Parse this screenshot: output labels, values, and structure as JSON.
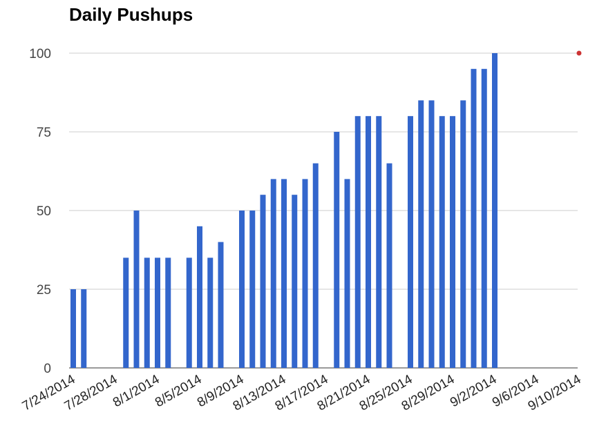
{
  "chart_data": {
    "type": "bar",
    "title": "Daily Pushups",
    "xlabel": "",
    "ylabel": "",
    "ylim": [
      0,
      100
    ],
    "xlim": [
      "7/24/2014",
      "9/10/2014"
    ],
    "grid": true,
    "legend": "none",
    "series_color": "#3366cc",
    "marker_color": "#cc3333",
    "y_ticks": [
      0,
      25,
      50,
      75,
      100
    ],
    "x_tick_labels": [
      "7/24/2014",
      "7/28/2014",
      "8/1/2014",
      "8/5/2014",
      "8/9/2014",
      "8/13/2014",
      "8/17/2014",
      "8/21/2014",
      "8/25/2014",
      "8/29/2014",
      "9/2/2014",
      "9/6/2014",
      "9/10/2014"
    ],
    "bars": [
      {
        "date": "7/24/2014",
        "value": 25
      },
      {
        "date": "7/25/2014",
        "value": 25
      },
      {
        "date": "7/29/2014",
        "value": 35
      },
      {
        "date": "7/30/2014",
        "value": 50
      },
      {
        "date": "7/31/2014",
        "value": 35
      },
      {
        "date": "8/1/2014",
        "value": 35
      },
      {
        "date": "8/2/2014",
        "value": 35
      },
      {
        "date": "8/4/2014",
        "value": 35
      },
      {
        "date": "8/5/2014",
        "value": 45
      },
      {
        "date": "8/6/2014",
        "value": 35
      },
      {
        "date": "8/7/2014",
        "value": 40
      },
      {
        "date": "8/9/2014",
        "value": 50
      },
      {
        "date": "8/10/2014",
        "value": 50
      },
      {
        "date": "8/11/2014",
        "value": 55
      },
      {
        "date": "8/12/2014",
        "value": 60
      },
      {
        "date": "8/13/2014",
        "value": 60
      },
      {
        "date": "8/14/2014",
        "value": 55
      },
      {
        "date": "8/15/2014",
        "value": 60
      },
      {
        "date": "8/16/2014",
        "value": 65
      },
      {
        "date": "8/18/2014",
        "value": 75
      },
      {
        "date": "8/19/2014",
        "value": 60
      },
      {
        "date": "8/20/2014",
        "value": 80
      },
      {
        "date": "8/21/2014",
        "value": 80
      },
      {
        "date": "8/22/2014",
        "value": 80
      },
      {
        "date": "8/23/2014",
        "value": 65
      },
      {
        "date": "8/25/2014",
        "value": 80
      },
      {
        "date": "8/26/2014",
        "value": 85
      },
      {
        "date": "8/27/2014",
        "value": 85
      },
      {
        "date": "8/28/2014",
        "value": 80
      },
      {
        "date": "8/29/2014",
        "value": 80
      },
      {
        "date": "8/30/2014",
        "value": 85
      },
      {
        "date": "8/31/2014",
        "value": 95
      },
      {
        "date": "9/1/2014",
        "value": 95
      },
      {
        "date": "9/2/2014",
        "value": 100
      }
    ],
    "markers": [
      {
        "date": "9/10/2014",
        "value": 100
      }
    ]
  }
}
